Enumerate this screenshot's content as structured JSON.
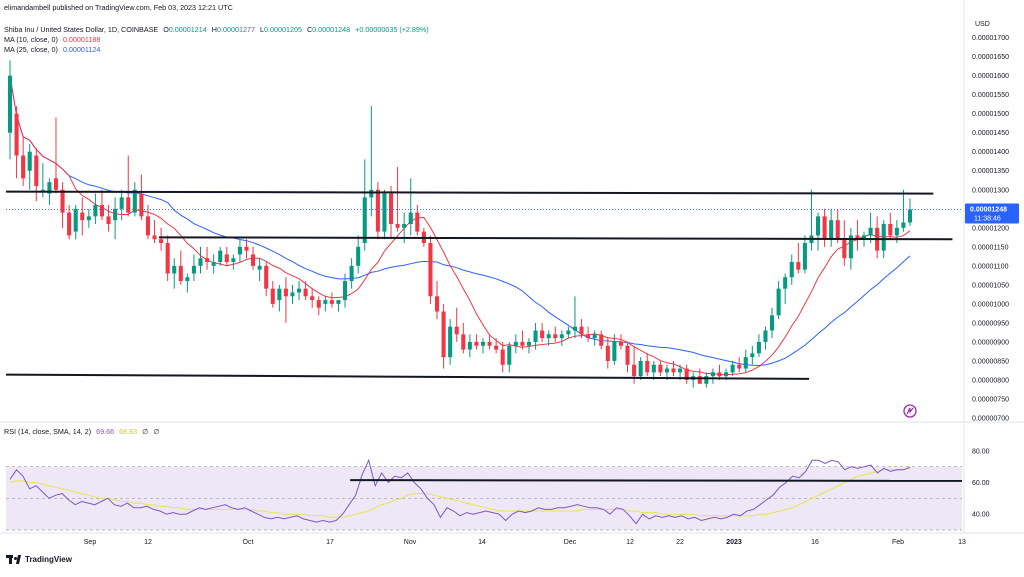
{
  "publisher_line": "elimandambell published on TradingView.com, Feb 03, 2023 12:21 UTC",
  "symbol": {
    "name": "Shiba Inu / United States Dollar, 1D, COINBASE",
    "open_label": "O",
    "open": "0.00001214",
    "high_label": "H",
    "high": "0.00001277",
    "low_label": "L",
    "low": "0.00001205",
    "close_label": "C",
    "close": "0.00001248",
    "change": "+0.00000035 (+2.89%)"
  },
  "ma10": {
    "label": "MA (10, close, 0)",
    "value": "0.00001188",
    "color": "#f23645"
  },
  "ma25": {
    "label": "MA (25, close, 0)",
    "value": "0.00001124",
    "color": "#2962ff"
  },
  "rsi": {
    "label": "RSI (14, close, SMA, 14, 2)",
    "value": "69.66",
    "sma_value": "68.83",
    "extra1": "∅",
    "extra2": "∅",
    "color": "#7e57c2",
    "sma_color": "#e6e650"
  },
  "currency": "USD",
  "price_badge": {
    "price": "0.00001248",
    "countdown": "11:38:46",
    "color": "#2962ff"
  },
  "logo_text": "TradingView",
  "colors": {
    "up": "#089981",
    "down": "#f23645",
    "line": "#131722",
    "band": "#ede7f6"
  },
  "chart_data": {
    "type": "candlestick",
    "price_axis": {
      "ylim": [
        7e-06,
        1.72e-05
      ],
      "ticks": [
        "0.00001700",
        "0.00001650",
        "0.00001600",
        "0.00001550",
        "0.00001500",
        "0.00001450",
        "0.00001400",
        "0.00001350",
        "0.00001300",
        "0.00001250",
        "0.00001200",
        "0.00001150",
        "0.00001100",
        "0.00001050",
        "0.00001000",
        "0.00000950",
        "0.00000900",
        "0.00000850",
        "0.00000800",
        "0.00000750",
        "0.00000700"
      ]
    },
    "rsi_axis": {
      "ylim": [
        30,
        90
      ],
      "ticks": [
        "80.00",
        "60.00",
        "40.00"
      ],
      "band": [
        30,
        70
      ]
    },
    "time_axis": {
      "labels": [
        "Sep",
        "12",
        "Oct",
        "17",
        "Nov",
        "14",
        "Dec",
        "12",
        "22",
        "2023",
        "16",
        "Feb",
        "13"
      ]
    },
    "candles": [
      {
        "o": 1.45,
        "h": 1.64,
        "l": 1.38,
        "c": 1.6
      },
      {
        "o": 1.5,
        "h": 1.52,
        "l": 1.33,
        "c": 1.39
      },
      {
        "o": 1.39,
        "h": 1.44,
        "l": 1.31,
        "c": 1.33
      },
      {
        "o": 1.35,
        "h": 1.42,
        "l": 1.3,
        "c": 1.4
      },
      {
        "o": 1.39,
        "h": 1.41,
        "l": 1.27,
        "c": 1.31
      },
      {
        "o": 1.3,
        "h": 1.37,
        "l": 1.28,
        "c": 1.3
      },
      {
        "o": 1.29,
        "h": 1.33,
        "l": 1.26,
        "c": 1.32
      },
      {
        "o": 1.33,
        "h": 1.49,
        "l": 1.29,
        "c": 1.3
      },
      {
        "o": 1.3,
        "h": 1.32,
        "l": 1.2,
        "c": 1.24
      },
      {
        "o": 1.24,
        "h": 1.26,
        "l": 1.17,
        "c": 1.18
      },
      {
        "o": 1.19,
        "h": 1.26,
        "l": 1.17,
        "c": 1.25
      },
      {
        "o": 1.24,
        "h": 1.28,
        "l": 1.18,
        "c": 1.22
      },
      {
        "o": 1.22,
        "h": 1.25,
        "l": 1.2,
        "c": 1.23
      },
      {
        "o": 1.23,
        "h": 1.29,
        "l": 1.21,
        "c": 1.26
      },
      {
        "o": 1.26,
        "h": 1.3,
        "l": 1.22,
        "c": 1.23
      },
      {
        "o": 1.23,
        "h": 1.26,
        "l": 1.19,
        "c": 1.21
      },
      {
        "o": 1.22,
        "h": 1.28,
        "l": 1.17,
        "c": 1.25
      },
      {
        "o": 1.25,
        "h": 1.3,
        "l": 1.22,
        "c": 1.28
      },
      {
        "o": 1.28,
        "h": 1.39,
        "l": 1.23,
        "c": 1.24
      },
      {
        "o": 1.24,
        "h": 1.32,
        "l": 1.23,
        "c": 1.3
      },
      {
        "o": 1.29,
        "h": 1.34,
        "l": 1.22,
        "c": 1.23
      },
      {
        "o": 1.23,
        "h": 1.26,
        "l": 1.17,
        "c": 1.18
      },
      {
        "o": 1.18,
        "h": 1.22,
        "l": 1.16,
        "c": 1.17
      },
      {
        "o": 1.17,
        "h": 1.2,
        "l": 1.14,
        "c": 1.16
      },
      {
        "o": 1.16,
        "h": 1.18,
        "l": 1.06,
        "c": 1.08
      },
      {
        "o": 1.08,
        "h": 1.12,
        "l": 1.04,
        "c": 1.1
      },
      {
        "o": 1.1,
        "h": 1.14,
        "l": 1.05,
        "c": 1.06
      },
      {
        "o": 1.06,
        "h": 1.08,
        "l": 1.03,
        "c": 1.07
      },
      {
        "o": 1.08,
        "h": 1.13,
        "l": 1.06,
        "c": 1.1
      },
      {
        "o": 1.1,
        "h": 1.15,
        "l": 1.08,
        "c": 1.12
      },
      {
        "o": 1.12,
        "h": 1.15,
        "l": 1.09,
        "c": 1.11
      },
      {
        "o": 1.1,
        "h": 1.13,
        "l": 1.08,
        "c": 1.11
      },
      {
        "o": 1.11,
        "h": 1.15,
        "l": 1.1,
        "c": 1.14
      },
      {
        "o": 1.13,
        "h": 1.15,
        "l": 1.1,
        "c": 1.11
      },
      {
        "o": 1.11,
        "h": 1.13,
        "l": 1.09,
        "c": 1.12
      },
      {
        "o": 1.13,
        "h": 1.17,
        "l": 1.11,
        "c": 1.15
      },
      {
        "o": 1.15,
        "h": 1.17,
        "l": 1.12,
        "c": 1.14
      },
      {
        "o": 1.13,
        "h": 1.15,
        "l": 1.09,
        "c": 1.1
      },
      {
        "o": 1.09,
        "h": 1.12,
        "l": 1.06,
        "c": 1.1
      },
      {
        "o": 1.1,
        "h": 1.11,
        "l": 1.02,
        "c": 1.04
      },
      {
        "o": 1.04,
        "h": 1.06,
        "l": 0.99,
        "c": 1.0
      },
      {
        "o": 1.01,
        "h": 1.05,
        "l": 0.98,
        "c": 1.04
      },
      {
        "o": 1.04,
        "h": 1.07,
        "l": 0.95,
        "c": 1.02
      },
      {
        "o": 1.02,
        "h": 1.05,
        "l": 1.0,
        "c": 1.03
      },
      {
        "o": 1.03,
        "h": 1.06,
        "l": 1.01,
        "c": 1.04
      },
      {
        "o": 1.04,
        "h": 1.06,
        "l": 1.01,
        "c": 1.02
      },
      {
        "o": 1.02,
        "h": 1.04,
        "l": 0.99,
        "c": 1.01
      },
      {
        "o": 1.01,
        "h": 1.02,
        "l": 0.97,
        "c": 0.99
      },
      {
        "o": 1.0,
        "h": 1.02,
        "l": 0.98,
        "c": 1.01
      },
      {
        "o": 1.01,
        "h": 1.03,
        "l": 0.99,
        "c": 1.0
      },
      {
        "o": 1.0,
        "h": 1.01,
        "l": 0.98,
        "c": 1.01
      },
      {
        "o": 1.01,
        "h": 1.08,
        "l": 0.99,
        "c": 1.06
      },
      {
        "o": 1.06,
        "h": 1.12,
        "l": 1.04,
        "c": 1.1
      },
      {
        "o": 1.1,
        "h": 1.18,
        "l": 1.08,
        "c": 1.15
      },
      {
        "o": 1.16,
        "h": 1.38,
        "l": 1.14,
        "c": 1.28
      },
      {
        "o": 1.28,
        "h": 1.52,
        "l": 1.23,
        "c": 1.3
      },
      {
        "o": 1.3,
        "h": 1.32,
        "l": 1.17,
        "c": 1.19
      },
      {
        "o": 1.19,
        "h": 1.3,
        "l": 1.17,
        "c": 1.29
      },
      {
        "o": 1.29,
        "h": 1.31,
        "l": 1.17,
        "c": 1.21
      },
      {
        "o": 1.21,
        "h": 1.36,
        "l": 1.19,
        "c": 1.2
      },
      {
        "o": 1.2,
        "h": 1.24,
        "l": 1.16,
        "c": 1.21
      },
      {
        "o": 1.21,
        "h": 1.33,
        "l": 1.18,
        "c": 1.24
      },
      {
        "o": 1.24,
        "h": 1.26,
        "l": 1.18,
        "c": 1.19
      },
      {
        "o": 1.19,
        "h": 1.2,
        "l": 1.15,
        "c": 1.16
      },
      {
        "o": 1.16,
        "h": 1.18,
        "l": 1.0,
        "c": 1.02
      },
      {
        "o": 1.02,
        "h": 1.06,
        "l": 0.96,
        "c": 0.98
      },
      {
        "o": 0.98,
        "h": 1.0,
        "l": 0.83,
        "c": 0.86
      },
      {
        "o": 0.86,
        "h": 0.96,
        "l": 0.84,
        "c": 0.94
      },
      {
        "o": 0.94,
        "h": 0.99,
        "l": 0.9,
        "c": 0.92
      },
      {
        "o": 0.92,
        "h": 0.95,
        "l": 0.87,
        "c": 0.88
      },
      {
        "o": 0.88,
        "h": 0.92,
        "l": 0.86,
        "c": 0.9
      },
      {
        "o": 0.9,
        "h": 0.92,
        "l": 0.88,
        "c": 0.89
      },
      {
        "o": 0.89,
        "h": 0.91,
        "l": 0.87,
        "c": 0.9
      },
      {
        "o": 0.9,
        "h": 0.92,
        "l": 0.88,
        "c": 0.89
      },
      {
        "o": 0.89,
        "h": 0.91,
        "l": 0.87,
        "c": 0.88
      },
      {
        "o": 0.88,
        "h": 0.9,
        "l": 0.82,
        "c": 0.84
      },
      {
        "o": 0.84,
        "h": 0.9,
        "l": 0.82,
        "c": 0.89
      },
      {
        "o": 0.89,
        "h": 0.92,
        "l": 0.87,
        "c": 0.9
      },
      {
        "o": 0.9,
        "h": 0.93,
        "l": 0.88,
        "c": 0.89
      },
      {
        "o": 0.89,
        "h": 0.91,
        "l": 0.87,
        "c": 0.9
      },
      {
        "o": 0.9,
        "h": 0.95,
        "l": 0.88,
        "c": 0.93
      },
      {
        "o": 0.93,
        "h": 0.95,
        "l": 0.9,
        "c": 0.91
      },
      {
        "o": 0.91,
        "h": 0.93,
        "l": 0.89,
        "c": 0.92
      },
      {
        "o": 0.92,
        "h": 0.94,
        "l": 0.9,
        "c": 0.91
      },
      {
        "o": 0.91,
        "h": 0.93,
        "l": 0.89,
        "c": 0.92
      },
      {
        "o": 0.92,
        "h": 0.94,
        "l": 0.91,
        "c": 0.93
      },
      {
        "o": 0.93,
        "h": 1.02,
        "l": 0.91,
        "c": 0.94
      },
      {
        "o": 0.94,
        "h": 0.96,
        "l": 0.91,
        "c": 0.92
      },
      {
        "o": 0.92,
        "h": 0.94,
        "l": 0.9,
        "c": 0.91
      },
      {
        "o": 0.91,
        "h": 0.93,
        "l": 0.89,
        "c": 0.92
      },
      {
        "o": 0.92,
        "h": 0.93,
        "l": 0.88,
        "c": 0.89
      },
      {
        "o": 0.89,
        "h": 0.91,
        "l": 0.83,
        "c": 0.85
      },
      {
        "o": 0.85,
        "h": 0.92,
        "l": 0.84,
        "c": 0.9
      },
      {
        "o": 0.9,
        "h": 0.92,
        "l": 0.88,
        "c": 0.89
      },
      {
        "o": 0.89,
        "h": 0.9,
        "l": 0.82,
        "c": 0.84
      },
      {
        "o": 0.84,
        "h": 0.89,
        "l": 0.79,
        "c": 0.81
      },
      {
        "o": 0.81,
        "h": 0.86,
        "l": 0.8,
        "c": 0.85
      },
      {
        "o": 0.85,
        "h": 0.87,
        "l": 0.81,
        "c": 0.82
      },
      {
        "o": 0.82,
        "h": 0.85,
        "l": 0.8,
        "c": 0.84
      },
      {
        "o": 0.84,
        "h": 0.85,
        "l": 0.81,
        "c": 0.82
      },
      {
        "o": 0.82,
        "h": 0.84,
        "l": 0.8,
        "c": 0.83
      },
      {
        "o": 0.83,
        "h": 0.85,
        "l": 0.81,
        "c": 0.82
      },
      {
        "o": 0.82,
        "h": 0.84,
        "l": 0.8,
        "c": 0.83
      },
      {
        "o": 0.83,
        "h": 0.84,
        "l": 0.79,
        "c": 0.8
      },
      {
        "o": 0.8,
        "h": 0.82,
        "l": 0.78,
        "c": 0.81
      },
      {
        "o": 0.81,
        "h": 0.83,
        "l": 0.79,
        "c": 0.79
      },
      {
        "o": 0.79,
        "h": 0.82,
        "l": 0.78,
        "c": 0.81
      },
      {
        "o": 0.81,
        "h": 0.83,
        "l": 0.79,
        "c": 0.82
      },
      {
        "o": 0.82,
        "h": 0.84,
        "l": 0.8,
        "c": 0.81
      },
      {
        "o": 0.81,
        "h": 0.83,
        "l": 0.8,
        "c": 0.82
      },
      {
        "o": 0.82,
        "h": 0.85,
        "l": 0.81,
        "c": 0.84
      },
      {
        "o": 0.84,
        "h": 0.86,
        "l": 0.82,
        "c": 0.83
      },
      {
        "o": 0.83,
        "h": 0.88,
        "l": 0.82,
        "c": 0.86
      },
      {
        "o": 0.86,
        "h": 0.89,
        "l": 0.84,
        "c": 0.87
      },
      {
        "o": 0.87,
        "h": 0.92,
        "l": 0.86,
        "c": 0.9
      },
      {
        "o": 0.9,
        "h": 0.94,
        "l": 0.88,
        "c": 0.93
      },
      {
        "o": 0.93,
        "h": 0.99,
        "l": 0.91,
        "c": 0.97
      },
      {
        "o": 0.97,
        "h": 1.06,
        "l": 0.96,
        "c": 1.04
      },
      {
        "o": 1.04,
        "h": 1.08,
        "l": 1.0,
        "c": 1.07
      },
      {
        "o": 1.07,
        "h": 1.13,
        "l": 1.05,
        "c": 1.11
      },
      {
        "o": 1.11,
        "h": 1.16,
        "l": 1.08,
        "c": 1.09
      },
      {
        "o": 1.09,
        "h": 1.18,
        "l": 1.08,
        "c": 1.16
      },
      {
        "o": 1.16,
        "h": 1.3,
        "l": 1.14,
        "c": 1.18
      },
      {
        "o": 1.18,
        "h": 1.24,
        "l": 1.14,
        "c": 1.23
      },
      {
        "o": 1.23,
        "h": 1.25,
        "l": 1.15,
        "c": 1.17
      },
      {
        "o": 1.17,
        "h": 1.25,
        "l": 1.15,
        "c": 1.22
      },
      {
        "o": 1.22,
        "h": 1.25,
        "l": 1.16,
        "c": 1.17
      },
      {
        "o": 1.17,
        "h": 1.22,
        "l": 1.1,
        "c": 1.12
      },
      {
        "o": 1.12,
        "h": 1.2,
        "l": 1.09,
        "c": 1.18
      },
      {
        "o": 1.18,
        "h": 1.22,
        "l": 1.14,
        "c": 1.17
      },
      {
        "o": 1.17,
        "h": 1.19,
        "l": 1.15,
        "c": 1.18
      },
      {
        "o": 1.18,
        "h": 1.24,
        "l": 1.16,
        "c": 1.2
      },
      {
        "o": 1.2,
        "h": 1.23,
        "l": 1.12,
        "c": 1.14
      },
      {
        "o": 1.14,
        "h": 1.22,
        "l": 1.12,
        "c": 1.21
      },
      {
        "o": 1.21,
        "h": 1.24,
        "l": 1.17,
        "c": 1.18
      },
      {
        "o": 1.18,
        "h": 1.22,
        "l": 1.16,
        "c": 1.2
      },
      {
        "o": 1.2,
        "h": 1.3,
        "l": 1.19,
        "c": 1.214
      },
      {
        "o": 1.214,
        "h": 1.277,
        "l": 1.205,
        "c": 1.248
      }
    ],
    "rsi_values": [
      62,
      68,
      64,
      56,
      58,
      54,
      50,
      52,
      53,
      49,
      46,
      48,
      47,
      46,
      48,
      50,
      46,
      45,
      47,
      44,
      44,
      45,
      43,
      42,
      40,
      41,
      40,
      40,
      42,
      44,
      43,
      44,
      45,
      46,
      44,
      43,
      44,
      42,
      40,
      38,
      37,
      38,
      37,
      38,
      39,
      37,
      36,
      35,
      36,
      35,
      36,
      40,
      46,
      52,
      65,
      74,
      58,
      66,
      60,
      64,
      63,
      66,
      60,
      56,
      50,
      46,
      38,
      44,
      42,
      39,
      41,
      40,
      41,
      42,
      41,
      40,
      36,
      40,
      42,
      41,
      42,
      44,
      43,
      43,
      44,
      44,
      45,
      46,
      45,
      44,
      44,
      43,
      40,
      44,
      43,
      39,
      34,
      40,
      37,
      39,
      38,
      39,
      38,
      39,
      37,
      38,
      36,
      37,
      38,
      37,
      38,
      40,
      39,
      42,
      43,
      46,
      49,
      52,
      57,
      60,
      64,
      63,
      67,
      74,
      74,
      72,
      74,
      73,
      68,
      70,
      69,
      70,
      71,
      66,
      69,
      67,
      68,
      68,
      69.66
    ],
    "rsi_sma_values": [
      60,
      61,
      61,
      60,
      60,
      59,
      58,
      57,
      56,
      55,
      54,
      53,
      52,
      51,
      50,
      50,
      49,
      48,
      48,
      47,
      47,
      46,
      46,
      45,
      45,
      44,
      44,
      43,
      43,
      43,
      43,
      43,
      43,
      43,
      43,
      43,
      43,
      43,
      42,
      42,
      41,
      41,
      40,
      40,
      40,
      40,
      39,
      39,
      39,
      38,
      38,
      38,
      39,
      40,
      41,
      42,
      44,
      46,
      47,
      49,
      50,
      52,
      53,
      53,
      53,
      52,
      51,
      50,
      49,
      48,
      47,
      46,
      45,
      44,
      43,
      42,
      42,
      42,
      42,
      42,
      42,
      42,
      42,
      42,
      42,
      42,
      42,
      42,
      43,
      43,
      43,
      43,
      43,
      43,
      43,
      42,
      42,
      41,
      41,
      41,
      40,
      40,
      40,
      40,
      40,
      40,
      39,
      39,
      39,
      39,
      39,
      39,
      39,
      39,
      39,
      40,
      40,
      41,
      42,
      43,
      44,
      46,
      48,
      50,
      52,
      54,
      56,
      58,
      60,
      62,
      64,
      65,
      66,
      67,
      68,
      68,
      68,
      68,
      68.83
    ],
    "levels": [
      {
        "from": 0,
        "to": 0.97,
        "y0": 1.295,
        "y1": 1.29
      },
      {
        "from": 0.16,
        "to": 0.99,
        "y0": 1.175,
        "y1": 1.17
      },
      {
        "from": 0,
        "to": 0.84,
        "y0": 0.814,
        "y1": 0.803
      }
    ],
    "rsi_level": {
      "from": 0.36,
      "to": 1.0,
      "y0": 61.5,
      "y1": 61.0
    }
  }
}
